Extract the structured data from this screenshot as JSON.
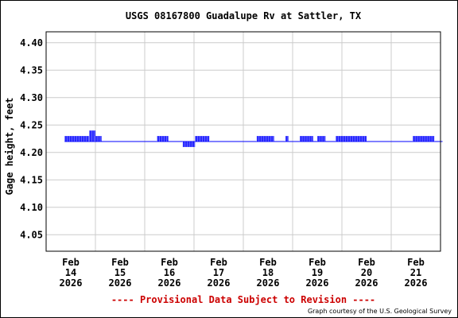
{
  "chart_data": {
    "type": "line",
    "title": "USGS 08167800 Guadalupe Rv at Sattler, TX",
    "ylabel": "Gage height, feet",
    "xlabel": "",
    "ylim": [
      4.02,
      4.42
    ],
    "yticks": [
      "4.40",
      "4.35",
      "4.30",
      "4.25",
      "4.20",
      "4.15",
      "4.10",
      "4.05"
    ],
    "ytick_values": [
      4.4,
      4.35,
      4.3,
      4.25,
      4.2,
      4.15,
      4.1,
      4.05
    ],
    "xlim": [
      "2026-02-14",
      "2026-02-22"
    ],
    "xticks": [
      {
        "date": "2026-02-14",
        "label": [
          "Feb",
          "14",
          "2026"
        ]
      },
      {
        "date": "2026-02-15",
        "label": [
          "Feb",
          "15",
          "2026"
        ]
      },
      {
        "date": "2026-02-16",
        "label": [
          "Feb",
          "16",
          "2026"
        ]
      },
      {
        "date": "2026-02-17",
        "label": [
          "Feb",
          "17",
          "2026"
        ]
      },
      {
        "date": "2026-02-18",
        "label": [
          "Feb",
          "18",
          "2026"
        ]
      },
      {
        "date": "2026-02-19",
        "label": [
          "Feb",
          "19",
          "2026"
        ]
      },
      {
        "date": "2026-02-20",
        "label": [
          "Feb",
          "20",
          "2026"
        ]
      },
      {
        "date": "2026-02-21",
        "label": [
          "Feb",
          "21",
          "2026"
        ]
      }
    ],
    "grid": true,
    "series": [
      {
        "color": "#0000ff",
        "baseline": 4.22,
        "segments": [
          {
            "from": "2026-02-13T21:00",
            "to": "2026-02-14T09:00",
            "min": 4.22,
            "max": 4.23
          },
          {
            "from": "2026-02-14T09:00",
            "to": "2026-02-14T12:00",
            "min": 4.22,
            "max": 4.24
          },
          {
            "from": "2026-02-14T12:00",
            "to": "2026-02-14T15:00",
            "min": 4.22,
            "max": 4.23
          },
          {
            "from": "2026-02-15T18:00",
            "to": "2026-02-15T23:30",
            "min": 4.22,
            "max": 4.23
          },
          {
            "from": "2026-02-16T06:30",
            "to": "2026-02-16T12:30",
            "min": 4.21,
            "max": 4.22
          },
          {
            "from": "2026-02-16T12:30",
            "to": "2026-02-16T19:30",
            "min": 4.22,
            "max": 4.23
          },
          {
            "from": "2026-02-17T18:30",
            "to": "2026-02-18T03:00",
            "min": 4.22,
            "max": 4.23
          },
          {
            "from": "2026-02-18T08:30",
            "to": "2026-02-18T10:00",
            "min": 4.22,
            "max": 4.23
          },
          {
            "from": "2026-02-18T15:30",
            "to": "2026-02-18T22:00",
            "min": 4.22,
            "max": 4.23
          },
          {
            "from": "2026-02-19T00:00",
            "to": "2026-02-19T04:00",
            "min": 4.22,
            "max": 4.23
          },
          {
            "from": "2026-02-19T09:00",
            "to": "2026-02-20T00:00",
            "min": 4.22,
            "max": 4.23
          },
          {
            "from": "2026-02-20T22:30",
            "to": "2026-02-21T09:00",
            "min": 4.22,
            "max": 4.23
          }
        ],
        "end": "2026-02-21T13:00"
      }
    ],
    "annotations": {
      "provisional": "---- Provisional Data Subject to Revision ----",
      "courtesy": "Graph courtesy of the U.S. Geological Survey"
    }
  },
  "colors": {
    "title": "#000000",
    "grid": "#cccccc",
    "series": "#0000ff",
    "provisional": "#cc0000"
  }
}
